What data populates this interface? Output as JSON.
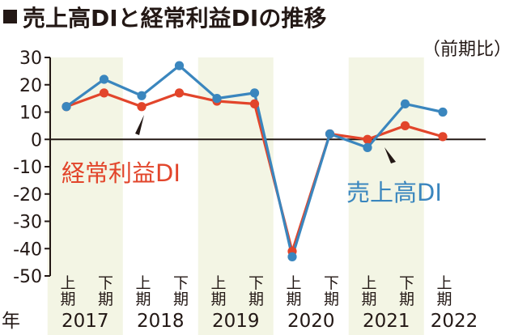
{
  "title": "売上高DIと経常利益DIの推移",
  "subtitle": "（前期比）",
  "year_prefix": "年",
  "colors": {
    "sales": "#3a86be",
    "profit": "#e2452b",
    "band": "#f3f5e4",
    "axis": "#231815"
  },
  "icons": [
    "title-square-icon"
  ],
  "chart_data": {
    "type": "line",
    "title": "売上高DIと経常利益DIの推移",
    "subtitle": "（前期比）",
    "xlabel": "年",
    "ylabel": "",
    "ylim": [
      -50,
      30
    ],
    "yticks": [
      "30",
      "20",
      "10",
      "0",
      "-10",
      "-20",
      "-30",
      "-40",
      "-50"
    ],
    "grid": false,
    "shaded_years": [
      "2017",
      "2019",
      "2021"
    ],
    "categories": [
      {
        "half": "上期",
        "year": "2017"
      },
      {
        "half": "下期",
        "year": "2017"
      },
      {
        "half": "上期",
        "year": "2018"
      },
      {
        "half": "下期",
        "year": "2018"
      },
      {
        "half": "上期",
        "year": "2019"
      },
      {
        "half": "下期",
        "year": "2019"
      },
      {
        "half": "上期",
        "year": "2020"
      },
      {
        "half": "下期",
        "year": "2020"
      },
      {
        "half": "上期",
        "year": "2021"
      },
      {
        "half": "下期",
        "year": "2021"
      },
      {
        "half": "上期",
        "year": "2022"
      }
    ],
    "years": [
      "2017",
      "2018",
      "2019",
      "2020",
      "2021",
      "2022"
    ],
    "series": [
      {
        "key": "profit",
        "name": "経常利益DI",
        "values": [
          12,
          17,
          12,
          17,
          14,
          13,
          -41,
          2,
          0,
          5,
          1
        ]
      },
      {
        "key": "sales",
        "name": "売上高DI",
        "values": [
          12,
          22,
          16,
          27,
          15,
          17,
          -43,
          2,
          -3,
          13,
          10
        ]
      }
    ]
  }
}
